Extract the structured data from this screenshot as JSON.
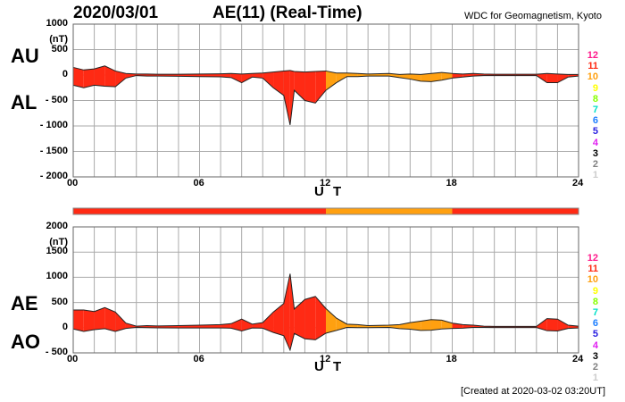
{
  "header": {
    "date": "2020/03/01",
    "title": "AE(11) (Real-Time)",
    "source": "WDC for Geomagnetism, Kyoto"
  },
  "footer": {
    "created": "[Created at 2020-03-02 03:20UT]"
  },
  "station_colors": {
    "12": "#ff1a8c",
    "11": "#ff2a14",
    "10": "#ffa010",
    "9": "#ffff00",
    "8": "#88ff00",
    "7": "#00e0c8",
    "6": "#1e7fff",
    "5": "#2a20e0",
    "4": "#e020f0",
    "3": "#000000",
    "2": "#808080",
    "1": "#cccccc"
  },
  "legend_labels": [
    "12",
    "11",
    "10",
    "9",
    "8",
    "7",
    "6",
    "5",
    "4",
    "3",
    "2",
    "1"
  ],
  "chart_data": [
    {
      "type": "area",
      "panel": "top",
      "series_labels": [
        "AU",
        "AL"
      ],
      "unit_label": "(nT)",
      "xlabel": "U T",
      "ylim": [
        -2000,
        1000
      ],
      "yticks": [
        1000,
        500,
        0,
        -500,
        -1000,
        -1500,
        -2000
      ],
      "ytick_labels": [
        "1000",
        "500",
        "0",
        "- 500",
        "- 1000",
        "- 1500",
        "- 2000"
      ],
      "xlim": [
        0,
        24
      ],
      "xticks": [
        0,
        6,
        12,
        18,
        24
      ],
      "xtick_labels": [
        "00",
        "06",
        "12",
        "18",
        "24"
      ],
      "grid": true,
      "x": [
        0,
        0.5,
        1,
        1.5,
        2,
        2.5,
        3,
        3.5,
        4,
        5,
        6,
        7,
        7.5,
        8,
        8.5,
        9,
        9.5,
        10,
        10.3,
        10.5,
        11,
        11.5,
        12,
        12.5,
        13,
        13.5,
        14,
        15,
        15.5,
        16,
        16.5,
        17,
        17.5,
        18,
        18.5,
        19,
        19.5,
        20,
        21,
        22,
        22.5,
        23,
        23.5,
        24
      ],
      "AU": [
        150,
        100,
        120,
        180,
        80,
        30,
        20,
        20,
        15,
        15,
        20,
        25,
        30,
        20,
        30,
        40,
        60,
        80,
        90,
        70,
        60,
        70,
        80,
        40,
        40,
        30,
        20,
        30,
        10,
        20,
        10,
        30,
        50,
        30,
        20,
        30,
        20,
        15,
        15,
        15,
        30,
        20,
        10,
        10
      ],
      "AL": [
        -200,
        -250,
        -200,
        -220,
        -230,
        -60,
        -10,
        -20,
        -20,
        -25,
        -30,
        -35,
        -50,
        -150,
        -40,
        -60,
        -250,
        -400,
        -980,
        -300,
        -500,
        -550,
        -300,
        -150,
        -30,
        -30,
        -20,
        -20,
        -50,
        -80,
        -120,
        -130,
        -100,
        -60,
        -40,
        -20,
        -10,
        -10,
        -10,
        -10,
        -150,
        -150,
        -40,
        -20
      ]
    },
    {
      "type": "area",
      "panel": "bottom",
      "series_labels": [
        "AE",
        "AO"
      ],
      "unit_label": "(nT)",
      "xlabel": "U T",
      "ylim": [
        -500,
        2000
      ],
      "yticks": [
        2000,
        1500,
        1000,
        500,
        0,
        -500
      ],
      "ytick_labels": [
        "2000",
        "1500",
        "1000",
        "500",
        "0",
        "- 500"
      ],
      "xlim": [
        0,
        24
      ],
      "xticks": [
        0,
        6,
        12,
        18,
        24
      ],
      "xtick_labels": [
        "00",
        "06",
        "12",
        "18",
        "24"
      ],
      "grid": true
    }
  ],
  "station_count_segments": [
    {
      "start": 0,
      "end": 12,
      "count": 11
    },
    {
      "start": 12,
      "end": 18,
      "count": 10
    },
    {
      "start": 18,
      "end": 24,
      "count": 11
    }
  ]
}
